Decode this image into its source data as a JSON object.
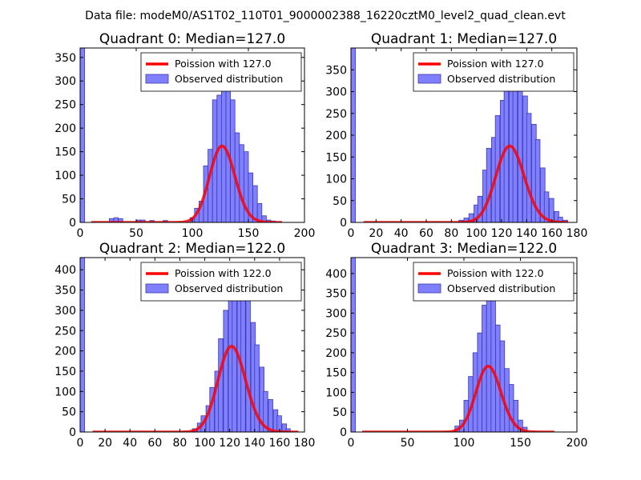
{
  "suptitle": "Data file: modeM0/AS1T02_110T01_9000002388_16220cztM0_level2_quad_clean.evt",
  "colors": {
    "hist_fill": "#7f7fff",
    "hist_edge": "#3b3bb0",
    "poisson": "#ff0000"
  },
  "chart_data": [
    {
      "type": "bar",
      "title": "Quadrant 0: Median=127.0",
      "xlim": [
        0,
        200
      ],
      "ylim": [
        0,
        370
      ],
      "xticks": [
        0,
        50,
        100,
        150,
        200
      ],
      "yticks": [
        0,
        50,
        100,
        150,
        200,
        250,
        300,
        350
      ],
      "legend": [
        "Poission with 127.0",
        "Observed distribution"
      ],
      "legend_loc": "upper right",
      "bin_width": 4,
      "bins": [
        [
          0,
          370
        ],
        [
          26,
          8
        ],
        [
          30,
          10
        ],
        [
          34,
          8
        ],
        [
          50,
          5
        ],
        [
          54,
          5
        ],
        [
          62,
          4
        ],
        [
          74,
          4
        ],
        [
          98,
          10
        ],
        [
          102,
          30
        ],
        [
          106,
          45
        ],
        [
          110,
          120
        ],
        [
          114,
          155
        ],
        [
          118,
          260
        ],
        [
          122,
          270
        ],
        [
          126,
          350
        ],
        [
          130,
          300
        ],
        [
          134,
          260
        ],
        [
          138,
          190
        ],
        [
          142,
          165
        ],
        [
          146,
          150
        ],
        [
          150,
          105
        ],
        [
          154,
          78
        ],
        [
          158,
          40
        ],
        [
          162,
          14
        ],
        [
          166,
          5
        ],
        [
          170,
          3
        ]
      ],
      "poisson_mean": 127.0,
      "poisson_scale": 4580,
      "poisson_x": [
        10,
        180
      ]
    },
    {
      "type": "bar",
      "title": "Quadrant 1: Median=127.0",
      "xlim": [
        0,
        180
      ],
      "ylim": [
        0,
        400
      ],
      "xticks": [
        0,
        20,
        40,
        60,
        80,
        100,
        120,
        140,
        160,
        180
      ],
      "yticks": [
        0,
        50,
        100,
        150,
        200,
        250,
        300,
        350
      ],
      "legend": [
        "Poission with 127.0",
        "Observed distribution"
      ],
      "legend_loc": "upper right",
      "bin_width": 3.6,
      "bins": [
        [
          0,
          400
        ],
        [
          86,
          5
        ],
        [
          90,
          10
        ],
        [
          94,
          20
        ],
        [
          98,
          40
        ],
        [
          101,
          60
        ],
        [
          105,
          120
        ],
        [
          108,
          170
        ],
        [
          112,
          195
        ],
        [
          115,
          245
        ],
        [
          119,
          280
        ],
        [
          122,
          355
        ],
        [
          126,
          310
        ],
        [
          129,
          335
        ],
        [
          133,
          370
        ],
        [
          137,
          290
        ],
        [
          140,
          250
        ],
        [
          144,
          225
        ],
        [
          147,
          190
        ],
        [
          151,
          125
        ],
        [
          154,
          70
        ],
        [
          158,
          55
        ],
        [
          162,
          25
        ],
        [
          165,
          12
        ],
        [
          169,
          5
        ]
      ],
      "poisson_mean": 127.0,
      "poisson_scale": 4950,
      "poisson_x": [
        10,
        173
      ]
    },
    {
      "type": "bar",
      "title": "Quadrant 2: Median=122.0",
      "xlim": [
        0,
        180
      ],
      "ylim": [
        0,
        430
      ],
      "xticks": [
        0,
        20,
        40,
        60,
        80,
        100,
        120,
        140,
        160,
        180
      ],
      "yticks": [
        0,
        50,
        100,
        150,
        200,
        250,
        300,
        350,
        400
      ],
      "legend": [
        "Poission with 122.0",
        "Observed distribution"
      ],
      "legend_loc": "upper right",
      "bin_width": 3.6,
      "bins": [
        [
          0,
          430
        ],
        [
          90,
          8
        ],
        [
          94,
          22
        ],
        [
          97,
          40
        ],
        [
          101,
          65
        ],
        [
          104,
          110
        ],
        [
          108,
          150
        ],
        [
          111,
          230
        ],
        [
          115,
          300
        ],
        [
          119,
          340
        ],
        [
          122,
          380
        ],
        [
          126,
          400
        ],
        [
          129,
          370
        ],
        [
          133,
          340
        ],
        [
          137,
          270
        ],
        [
          140,
          215
        ],
        [
          144,
          160
        ],
        [
          147,
          100
        ],
        [
          151,
          80
        ],
        [
          155,
          55
        ],
        [
          158,
          40
        ],
        [
          162,
          20
        ],
        [
          165,
          8
        ]
      ],
      "poisson_mean": 122.0,
      "poisson_scale": 5850,
      "poisson_x": [
        10,
        175
      ]
    },
    {
      "type": "bar",
      "title": "Quadrant 3: Median=122.0",
      "xlim": [
        0,
        200
      ],
      "ylim": [
        0,
        440
      ],
      "xticks": [
        0,
        50,
        100,
        150,
        200
      ],
      "yticks": [
        0,
        50,
        100,
        150,
        200,
        250,
        300,
        350,
        400
      ],
      "legend": [
        "Poission with 122.0",
        "Observed distribution"
      ],
      "legend_loc": "upper right",
      "bin_width": 4,
      "bins": [
        [
          0,
          440
        ],
        [
          92,
          15
        ],
        [
          96,
          30
        ],
        [
          100,
          80
        ],
        [
          104,
          140
        ],
        [
          108,
          200
        ],
        [
          112,
          250
        ],
        [
          116,
          320
        ],
        [
          120,
          350
        ],
        [
          124,
          380
        ],
        [
          128,
          270
        ],
        [
          132,
          230
        ],
        [
          136,
          160
        ],
        [
          140,
          120
        ],
        [
          144,
          80
        ],
        [
          148,
          30
        ],
        [
          152,
          12
        ]
      ],
      "poisson_mean": 122.0,
      "poisson_scale": 4600,
      "poisson_x": [
        10,
        180
      ]
    }
  ]
}
